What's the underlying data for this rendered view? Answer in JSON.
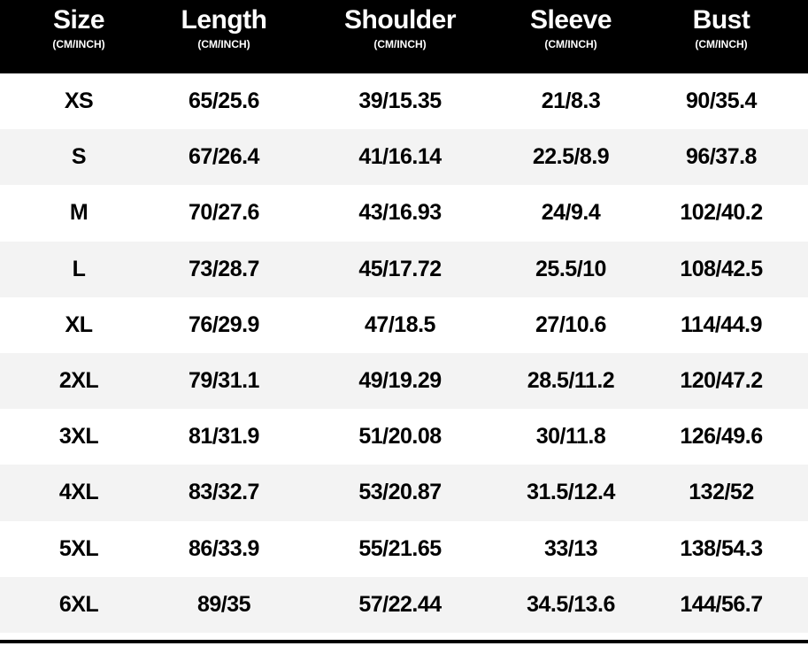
{
  "headers": [
    {
      "title": "Size",
      "unit": "(CM/INCH)"
    },
    {
      "title": "Length",
      "unit": "(CM/INCH)"
    },
    {
      "title": "Shoulder",
      "unit": "(CM/INCH)"
    },
    {
      "title": "Sleeve",
      "unit": "(CM/INCH)"
    },
    {
      "title": "Bust",
      "unit": "(CM/INCH)"
    }
  ],
  "rows": [
    [
      "XS",
      "65/25.6",
      "39/15.35",
      "21/8.3",
      "90/35.4"
    ],
    [
      "S",
      "67/26.4",
      "41/16.14",
      "22.5/8.9",
      "96/37.8"
    ],
    [
      "M",
      "70/27.6",
      "43/16.93",
      "24/9.4",
      "102/40.2"
    ],
    [
      "L",
      "73/28.7",
      "45/17.72",
      "25.5/10",
      "108/42.5"
    ],
    [
      "XL",
      "76/29.9",
      "47/18.5",
      "27/10.6",
      "114/44.9"
    ],
    [
      "2XL",
      "79/31.1",
      "49/19.29",
      "28.5/11.2",
      "120/47.2"
    ],
    [
      "3XL",
      "81/31.9",
      "51/20.08",
      "30/11.8",
      "126/49.6"
    ],
    [
      "4XL",
      "83/32.7",
      "53/20.87",
      "31.5/12.4",
      "132/52"
    ],
    [
      "5XL",
      "86/33.9",
      "55/21.65",
      "33/13",
      "138/54.3"
    ],
    [
      "6XL",
      "89/35",
      "57/22.44",
      "34.5/13.6",
      "144/56.7"
    ]
  ],
  "colors": {
    "header_bg": "#000000",
    "header_text": "#ffffff",
    "row_alt": "#f3f3f3"
  }
}
